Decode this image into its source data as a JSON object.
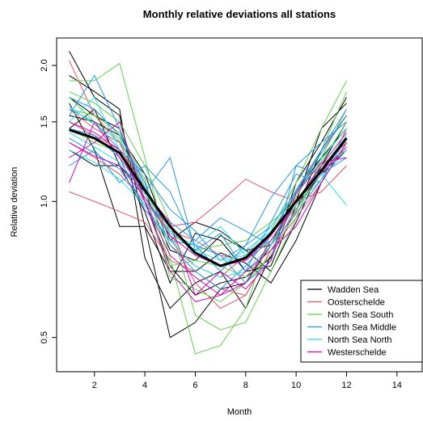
{
  "chart_data": {
    "type": "line",
    "title": "Monthly relative deviations all stations",
    "xlabel": "Month",
    "ylabel": "Relative deviation",
    "xlim": [
      0.5,
      15.0
    ],
    "ylim": [
      0.42,
      2.3
    ],
    "y_scale": "log",
    "x_ticks": [
      2,
      4,
      6,
      8,
      10,
      12,
      14
    ],
    "y_ticks": [
      0.5,
      1.0,
      1.5,
      2.0
    ],
    "y_tick_labels": [
      "0.5",
      "1.0",
      "1.5",
      "2.0"
    ],
    "legend_position": "bottom-right",
    "legend": [
      {
        "name": "Wadden Sea",
        "color": "#000000"
      },
      {
        "name": "Oosterschelde",
        "color": "#DF536B"
      },
      {
        "name": "North Sea South",
        "color": "#61D04F"
      },
      {
        "name": "North Sea Middle",
        "color": "#2297E6"
      },
      {
        "name": "North Sea North",
        "color": "#28E2E5"
      },
      {
        "name": "Westerschelde",
        "color": "#CD0BBC"
      }
    ],
    "x": [
      1,
      2,
      3,
      4,
      5,
      6,
      7,
      8,
      9,
      10,
      11,
      12
    ],
    "mean": {
      "color": "#000000",
      "values": [
        1.44,
        1.38,
        1.28,
        1.06,
        0.88,
        0.77,
        0.72,
        0.75,
        0.85,
        1.0,
        1.17,
        1.38
      ]
    },
    "series": [
      {
        "group": 0,
        "values": [
          2.15,
          1.7,
          1.55,
          0.88,
          0.5,
          0.54,
          0.64,
          0.66,
          0.8,
          1.0,
          1.45,
          1.65
        ]
      },
      {
        "group": 0,
        "values": [
          1.9,
          1.75,
          1.6,
          0.75,
          0.58,
          0.66,
          0.7,
          0.58,
          0.76,
          0.95,
          1.3,
          1.55
        ]
      },
      {
        "group": 0,
        "values": [
          1.3,
          1.2,
          1.2,
          0.95,
          0.66,
          0.85,
          0.82,
          0.7,
          0.72,
          0.98,
          1.15,
          1.3
        ]
      },
      {
        "group": 0,
        "values": [
          1.55,
          1.5,
          1.4,
          1.15,
          0.82,
          0.9,
          0.86,
          0.78,
          0.8,
          1.05,
          1.25,
          1.45
        ]
      },
      {
        "group": 0,
        "values": [
          1.65,
          1.3,
          0.88,
          0.88,
          0.7,
          0.7,
          0.77,
          0.73,
          0.66,
          0.82,
          1.1,
          1.35
        ]
      },
      {
        "group": 0,
        "values": [
          1.45,
          1.6,
          1.2,
          1.05,
          0.78,
          0.74,
          0.84,
          0.78,
          0.7,
          0.9,
          1.2,
          1.5
        ]
      },
      {
        "group": 0,
        "values": [
          1.7,
          1.55,
          1.45,
          1.0,
          0.72,
          0.62,
          0.66,
          0.68,
          0.75,
          1.1,
          1.35,
          1.7
        ]
      },
      {
        "group": 1,
        "values": [
          2.05,
          1.55,
          1.35,
          1.0,
          0.88,
          0.9,
          1.0,
          1.12,
          1.05,
          1.0,
          1.05,
          1.2
        ]
      },
      {
        "group": 1,
        "values": [
          1.05,
          1.0,
          0.95,
          0.9,
          0.74,
          0.7,
          0.64,
          0.62,
          0.78,
          0.92,
          1.1,
          1.45
        ]
      },
      {
        "group": 1,
        "values": [
          1.6,
          1.45,
          1.35,
          1.1,
          0.8,
          0.72,
          0.68,
          0.76,
          0.85,
          1.05,
          1.3,
          1.55
        ]
      },
      {
        "group": 1,
        "values": [
          1.35,
          1.25,
          1.15,
          1.0,
          0.86,
          0.82,
          0.76,
          0.74,
          0.82,
          0.98,
          1.2,
          1.35
        ]
      },
      {
        "group": 1,
        "values": [
          1.5,
          1.4,
          1.3,
          1.08,
          0.84,
          0.66,
          0.58,
          0.62,
          0.78,
          0.96,
          1.15,
          1.4
        ]
      },
      {
        "group": 2,
        "values": [
          1.85,
          1.85,
          2.02,
          1.25,
          0.75,
          0.46,
          0.48,
          0.58,
          0.86,
          1.1,
          1.45,
          1.85
        ]
      },
      {
        "group": 2,
        "values": [
          1.75,
          1.65,
          1.5,
          1.2,
          0.9,
          0.56,
          0.52,
          0.54,
          0.7,
          0.92,
          1.25,
          1.6
        ]
      },
      {
        "group": 2,
        "values": [
          1.6,
          1.55,
          1.42,
          1.12,
          0.72,
          0.74,
          0.72,
          0.68,
          0.8,
          1.02,
          1.3,
          1.75
        ]
      },
      {
        "group": 2,
        "values": [
          1.45,
          1.35,
          1.28,
          1.02,
          0.85,
          0.78,
          0.8,
          0.82,
          0.9,
          1.0,
          1.2,
          1.3
        ]
      },
      {
        "group": 2,
        "values": [
          1.7,
          1.5,
          1.38,
          1.06,
          0.68,
          0.64,
          0.6,
          0.66,
          0.76,
          0.95,
          1.22,
          1.5
        ]
      },
      {
        "group": 3,
        "values": [
          1.55,
          1.9,
          1.45,
          1.05,
          1.25,
          0.78,
          0.85,
          0.7,
          0.9,
          1.15,
          1.1,
          1.35
        ]
      },
      {
        "group": 3,
        "values": [
          1.2,
          1.3,
          1.1,
          1.2,
          1.05,
          0.8,
          0.76,
          0.66,
          0.74,
          1.2,
          1.35,
          1.5
        ]
      },
      {
        "group": 3,
        "values": [
          1.45,
          1.4,
          1.25,
          0.96,
          0.82,
          0.8,
          0.7,
          0.8,
          1.02,
          1.2,
          1.15,
          1.25
        ]
      },
      {
        "group": 3,
        "values": [
          1.6,
          1.5,
          1.3,
          1.15,
          0.96,
          0.86,
          0.74,
          0.8,
          0.88,
          1.05,
          1.28,
          1.55
        ]
      },
      {
        "group": 3,
        "values": [
          1.38,
          1.28,
          1.18,
          0.98,
          0.9,
          0.82,
          0.92,
          0.86,
          0.8,
          0.94,
          1.12,
          1.38
        ]
      },
      {
        "group": 3,
        "values": [
          1.7,
          1.6,
          1.4,
          1.1,
          0.8,
          0.7,
          0.64,
          0.72,
          0.84,
          1.06,
          1.3,
          1.6
        ]
      },
      {
        "group": 4,
        "values": [
          1.5,
          1.7,
          1.3,
          1.0,
          0.85,
          0.8,
          0.88,
          0.76,
          0.82,
          1.0,
          1.15,
          0.98
        ]
      },
      {
        "group": 4,
        "values": [
          1.42,
          1.32,
          1.22,
          1.04,
          0.88,
          0.76,
          0.72,
          0.78,
          0.86,
          1.0,
          1.18,
          1.4
        ]
      },
      {
        "group": 4,
        "values": [
          1.3,
          1.22,
          1.12,
          0.98,
          0.82,
          0.72,
          0.68,
          0.7,
          0.8,
          0.98,
          1.12,
          1.3
        ]
      },
      {
        "group": 4,
        "values": [
          1.62,
          1.48,
          1.36,
          1.08,
          0.86,
          0.78,
          0.74,
          0.76,
          0.88,
          1.04,
          1.24,
          1.45
        ]
      },
      {
        "group": 5,
        "values": [
          1.25,
          1.35,
          1.5,
          1.0,
          0.7,
          0.6,
          0.62,
          0.7,
          0.78,
          0.88,
          1.1,
          1.35
        ]
      },
      {
        "group": 5,
        "values": [
          1.5,
          1.42,
          1.3,
          1.0,
          0.76,
          0.68,
          0.62,
          0.66,
          0.82,
          1.0,
          1.2,
          1.42
        ]
      },
      {
        "group": 5,
        "values": [
          1.1,
          1.5,
          1.25,
          1.05,
          0.9,
          0.62,
          0.7,
          0.64,
          0.74,
          1.04,
          1.22,
          1.25
        ]
      },
      {
        "group": 5,
        "values": [
          1.35,
          1.26,
          1.2,
          1.02,
          0.84,
          0.76,
          0.72,
          0.74,
          0.84,
          1.0,
          1.16,
          1.32
        ]
      }
    ]
  }
}
